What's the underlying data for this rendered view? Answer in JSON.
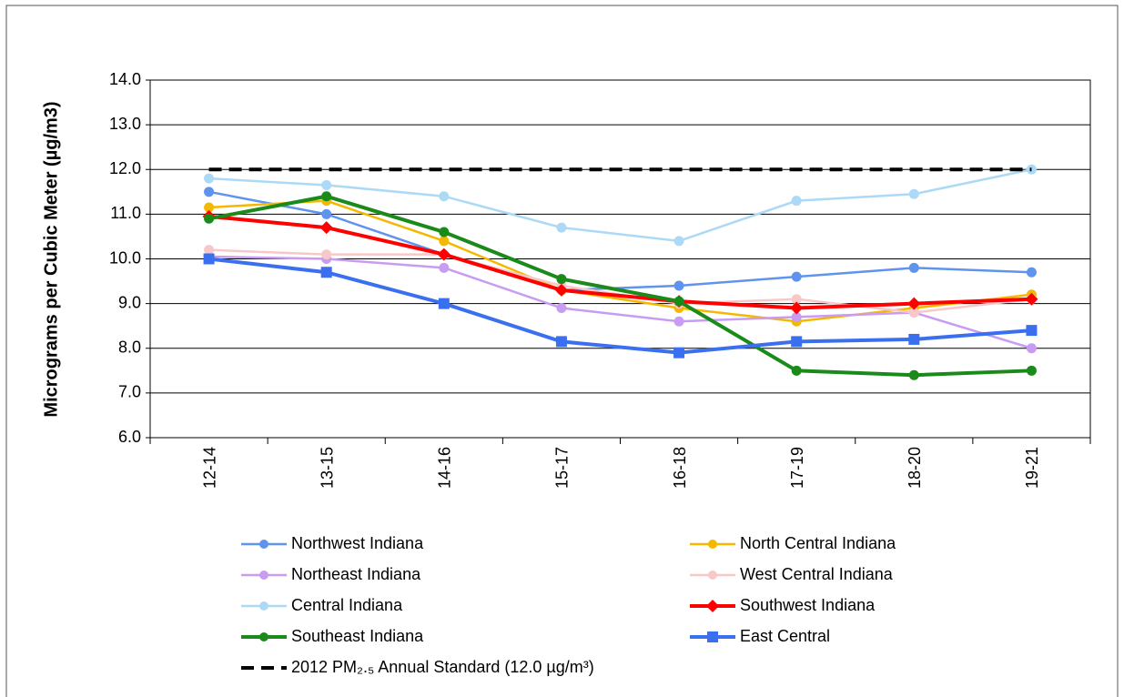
{
  "chart_data": {
    "type": "line",
    "y_label": "Micrograms per Cubic Meter (µg/m3)",
    "categories": [
      "12-14",
      "13-15",
      "14-16",
      "15-17",
      "16-18",
      "17-19",
      "18-20",
      "19-21"
    ],
    "ylim": [
      6,
      14
    ],
    "yticks": [
      {
        "value": 6,
        "label": "6.0"
      },
      {
        "value": 7,
        "label": "7.0"
      },
      {
        "value": 8,
        "label": "8.0"
      },
      {
        "value": 9,
        "label": "9.0"
      },
      {
        "value": 10,
        "label": "10.0"
      },
      {
        "value": 11,
        "label": "11.0"
      },
      {
        "value": 12,
        "label": "12.0"
      },
      {
        "value": 13,
        "label": "13.0"
      },
      {
        "value": 14,
        "label": "14.0"
      }
    ],
    "grid": true,
    "legend": "bottom",
    "series": [
      {
        "name": "Northwest Indiana",
        "color": "#5f93ee",
        "marker": "circle",
        "line_width": 2.5,
        "values": [
          11.5,
          11.0,
          10.1,
          9.3,
          9.4,
          9.6,
          9.8,
          9.7
        ]
      },
      {
        "name": "North Central Indiana",
        "color": "#f5b800",
        "marker": "circle",
        "line_width": 2.5,
        "values": [
          11.15,
          11.3,
          10.4,
          9.3,
          8.9,
          8.6,
          8.9,
          9.2
        ]
      },
      {
        "name": "Northeast Indiana",
        "color": "#c79cf2",
        "marker": "circle",
        "line_width": 2.5,
        "values": [
          10.05,
          10.0,
          9.8,
          8.9,
          8.6,
          8.7,
          8.8,
          8.0
        ]
      },
      {
        "name": "West Central Indiana",
        "color": "#f8c8c8",
        "marker": "circle",
        "line_width": 2.5,
        "values": [
          10.2,
          10.1,
          10.1,
          9.4,
          9.0,
          9.1,
          8.8,
          9.1
        ]
      },
      {
        "name": "Central Indiana",
        "color": "#acd9f5",
        "marker": "circle",
        "line_width": 2.5,
        "values": [
          11.8,
          11.65,
          11.4,
          10.7,
          10.4,
          11.3,
          11.45,
          12.0
        ]
      },
      {
        "name": "Southwest Indiana",
        "color": "#ff0000",
        "marker": "diamond",
        "line_width": 4,
        "values": [
          10.95,
          10.7,
          10.1,
          9.3,
          9.05,
          8.9,
          9.0,
          9.1
        ]
      },
      {
        "name": "Southeast Indiana",
        "color": "#1a8a1a",
        "marker": "circle",
        "line_width": 4,
        "values": [
          10.9,
          11.4,
          10.6,
          9.55,
          9.05,
          7.5,
          7.4,
          7.5
        ]
      },
      {
        "name": "East Central",
        "color": "#3a70f0",
        "marker": "square",
        "line_width": 4,
        "values": [
          10.0,
          9.7,
          9.0,
          8.15,
          7.9,
          8.15,
          8.2,
          8.4
        ]
      },
      {
        "name": "2012 PM₂.₅ Annual Standard (12.0 µg/m³)",
        "color": "#000000",
        "marker": "none",
        "dash": true,
        "line_width": 4,
        "values": [
          12,
          12,
          12,
          12,
          12,
          12,
          12,
          12
        ]
      }
    ]
  }
}
